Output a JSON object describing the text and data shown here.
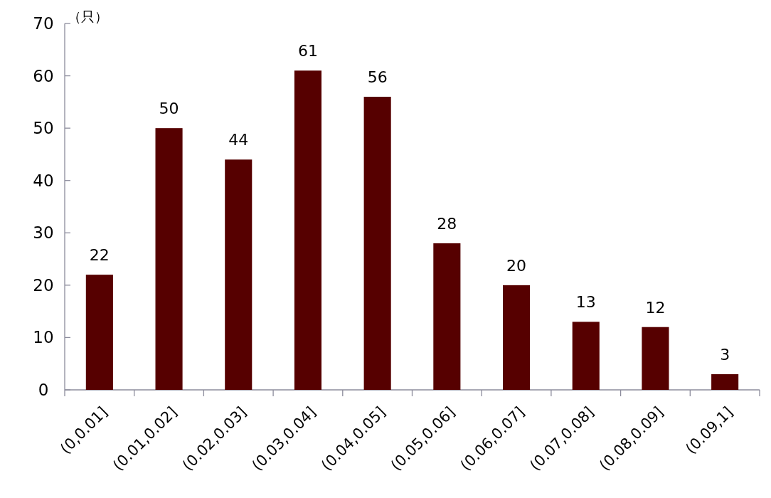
{
  "chart_data": {
    "type": "bar",
    "ylabel": "（只）",
    "categories": [
      "(0,0.01]",
      "(0.01,0.02]",
      "(0.02,0.03]",
      "(0.03,0.04]",
      "(0.04,0.05]",
      "(0.05,0.06]",
      "(0.06,0.07]",
      "(0.07,0.08]",
      "(0.08,0.09]",
      "(0.09,1]"
    ],
    "values": [
      22,
      50,
      44,
      61,
      56,
      28,
      20,
      13,
      12,
      3
    ],
    "color": "#560000",
    "ylim": [
      0,
      70
    ],
    "yticks": [
      0,
      10,
      20,
      30,
      40,
      50,
      60,
      70
    ],
    "data_labels": true
  }
}
